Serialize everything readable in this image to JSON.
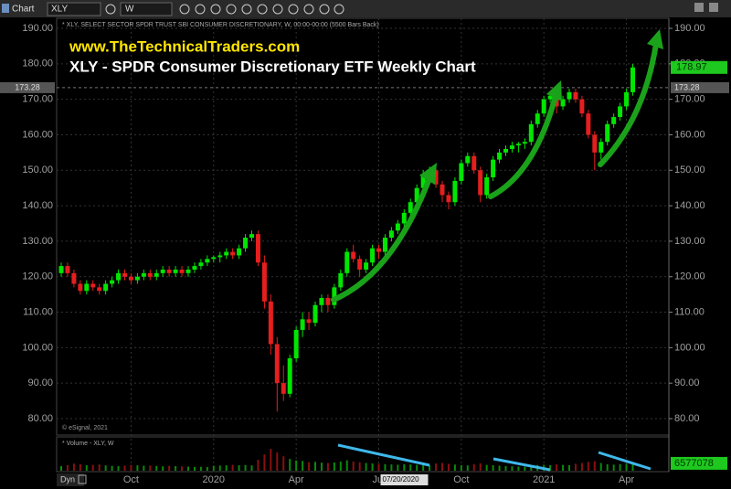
{
  "toolbar": {
    "chart": "Chart",
    "symbol": "XLY",
    "interval": "W"
  },
  "chart_data": {
    "type": "candlestick",
    "header": "* XLY, SELECT SECTOR SPDR TRUST SBI CONSUMER DISCRETIONARY, W, 00:00-00:00 (5500 Bars Back)",
    "subtitle": "www.TheTechnicalTraders.com",
    "title": "XLY - SPDR Consumer Discretionary ETF Weekly Chart",
    "copyright": "© eSignal, 2021",
    "up_color": "#00e600",
    "down_color": "#e61e1e",
    "ylim": [
      80,
      190
    ],
    "yticks": [
      {
        "value": 80,
        "label": "80.00"
      },
      {
        "value": 90,
        "label": "90.00"
      },
      {
        "value": 100,
        "label": "100.00"
      },
      {
        "value": 110,
        "label": "110.00"
      },
      {
        "value": 120,
        "label": "120.00"
      },
      {
        "value": 130,
        "label": "130.00"
      },
      {
        "value": 140,
        "label": "140.00"
      },
      {
        "value": 150,
        "label": "150.00"
      },
      {
        "value": 160,
        "label": "160.00"
      },
      {
        "value": 170,
        "label": "170.00"
      },
      {
        "value": 180,
        "label": "180.00"
      },
      {
        "value": 190,
        "label": "190.00"
      }
    ],
    "grid": true,
    "xticks": [
      {
        "value": 11,
        "label": "Oct"
      },
      {
        "value": 24,
        "label": "2020"
      },
      {
        "value": 37,
        "label": "Apr"
      },
      {
        "value": 50,
        "label": "Jul"
      },
      {
        "value": 63,
        "label": "Oct"
      },
      {
        "value": 76,
        "label": "2021"
      },
      {
        "value": 89,
        "label": "Apr"
      }
    ],
    "ref_price": 173.28,
    "candles": [
      [
        121,
        124,
        120,
        123
      ],
      [
        123,
        124,
        120,
        121
      ],
      [
        121,
        122,
        117,
        118
      ],
      [
        118,
        119,
        115,
        116
      ],
      [
        116,
        119,
        115,
        118
      ],
      [
        118,
        119,
        116,
        117
      ],
      [
        117,
        118,
        115,
        116
      ],
      [
        116,
        119,
        115,
        118
      ],
      [
        118,
        120,
        117,
        119
      ],
      [
        119,
        122,
        118,
        121
      ],
      [
        121,
        122,
        119,
        120
      ],
      [
        120,
        121,
        118,
        119
      ],
      [
        119,
        121,
        118,
        120
      ],
      [
        120,
        122,
        119,
        121
      ],
      [
        121,
        122,
        119,
        120
      ],
      [
        120,
        122,
        119,
        121
      ],
      [
        121,
        123,
        120,
        122
      ],
      [
        122,
        123,
        120,
        121
      ],
      [
        121,
        123,
        120,
        122
      ],
      [
        122,
        123,
        120,
        121
      ],
      [
        121,
        123,
        120,
        122
      ],
      [
        122,
        124,
        121,
        123
      ],
      [
        123,
        125,
        122,
        124
      ],
      [
        124,
        126,
        123,
        125
      ],
      [
        125,
        126,
        124,
        125.5
      ],
      [
        125.5,
        127,
        124,
        126
      ],
      [
        126,
        128,
        125,
        127
      ],
      [
        127,
        128,
        125,
        126
      ],
      [
        126,
        129,
        125,
        128
      ],
      [
        128,
        132,
        127,
        131
      ],
      [
        131,
        133,
        130,
        132
      ],
      [
        132,
        133,
        123,
        124
      ],
      [
        124,
        126,
        111,
        113
      ],
      [
        113,
        115,
        98,
        101
      ],
      [
        101,
        103,
        82,
        90
      ],
      [
        90,
        95,
        85,
        87
      ],
      [
        87,
        98,
        86,
        97
      ],
      [
        97,
        106,
        96,
        105
      ],
      [
        105,
        110,
        103,
        108
      ],
      [
        108,
        110,
        105,
        107
      ],
      [
        107,
        113,
        106,
        112
      ],
      [
        112,
        115,
        110,
        114
      ],
      [
        114,
        115,
        110,
        112
      ],
      [
        112,
        118,
        111,
        117
      ],
      [
        117,
        122,
        116,
        121
      ],
      [
        121,
        128,
        120,
        127
      ],
      [
        127,
        129,
        124,
        125
      ],
      [
        125,
        126,
        120,
        122
      ],
      [
        122,
        125,
        121,
        124
      ],
      [
        124,
        129,
        123,
        128
      ],
      [
        128,
        129,
        125,
        127
      ],
      [
        127,
        132,
        126,
        131
      ],
      [
        131,
        134,
        130,
        133
      ],
      [
        133,
        136,
        132,
        135
      ],
      [
        135,
        139,
        134,
        138
      ],
      [
        138,
        142,
        137,
        141
      ],
      [
        141,
        146,
        140,
        145
      ],
      [
        145,
        150,
        144,
        149
      ],
      [
        149,
        151,
        147,
        150
      ],
      [
        150,
        151,
        145,
        146
      ],
      [
        146,
        147,
        141,
        143
      ],
      [
        143,
        144,
        139,
        141
      ],
      [
        141,
        148,
        140,
        147
      ],
      [
        147,
        153,
        146,
        152
      ],
      [
        152,
        155,
        151,
        154
      ],
      [
        154,
        155,
        149,
        150
      ],
      [
        150,
        151,
        141,
        143
      ],
      [
        143,
        149,
        142,
        148
      ],
      [
        148,
        154,
        147,
        153
      ],
      [
        153,
        156,
        152,
        155
      ],
      [
        155,
        157,
        154,
        156
      ],
      [
        156,
        158,
        155,
        157
      ],
      [
        157,
        158,
        155,
        157.5
      ],
      [
        157.5,
        159,
        156,
        158
      ],
      [
        158,
        164,
        157,
        163
      ],
      [
        163,
        167,
        162,
        166
      ],
      [
        166,
        171,
        165,
        170
      ],
      [
        170,
        172,
        169,
        171
      ],
      [
        171,
        172,
        166,
        168
      ],
      [
        168,
        171,
        167,
        170
      ],
      [
        170,
        173,
        169,
        172
      ],
      [
        172,
        173,
        169,
        170
      ],
      [
        170,
        171,
        165,
        166
      ],
      [
        166,
        167,
        159,
        160
      ],
      [
        160,
        161,
        150,
        155
      ],
      [
        155,
        159,
        153,
        158
      ],
      [
        158,
        164,
        157,
        163
      ],
      [
        163,
        166,
        162,
        165
      ],
      [
        165,
        169,
        164,
        168
      ],
      [
        168,
        173,
        167,
        172
      ],
      [
        172,
        180,
        171,
        178.97
      ]
    ],
    "last_price": 178.97,
    "volume_label": "* Volume - XLY, W",
    "volume_lim": [
      0,
      22000000
    ],
    "volume": [
      4200000,
      5100000,
      6300000,
      5800000,
      4900000,
      5200000,
      5600000,
      4700000,
      4300000,
      4100000,
      4500000,
      5200000,
      4800000,
      4400000,
      4600000,
      4200000,
      3900000,
      4300000,
      4100000,
      3800000,
      3600000,
      3400000,
      3500000,
      3300000,
      4400000,
      4600000,
      4800000,
      5300000,
      4900000,
      5100000,
      4700000,
      9800000,
      14500000,
      19500000,
      16200000,
      12800000,
      10500000,
      9200000,
      8700000,
      7600000,
      7900000,
      7200000,
      6800000,
      7400000,
      8100000,
      9300000,
      8200000,
      7600000,
      6900000,
      6500000,
      6200000,
      5900000,
      5600000,
      5400000,
      5800000,
      5500000,
      5200000,
      5600000,
      5100000,
      6400000,
      6900000,
      6100000,
      5500000,
      5000000,
      4700000,
      5900000,
      6500000,
      5200000,
      4900000,
      4500000,
      4200000,
      3900000,
      3700000,
      3500000,
      4400000,
      5100000,
      5300000,
      4900000,
      5600000,
      5200000,
      5000000,
      6200000,
      6800000,
      7900000,
      8500000,
      6900000,
      5800000,
      5400000,
      5900000,
      6300000,
      6577078
    ],
    "footer": {
      "dyn": "Dyn",
      "date": "07/20/2020"
    }
  }
}
